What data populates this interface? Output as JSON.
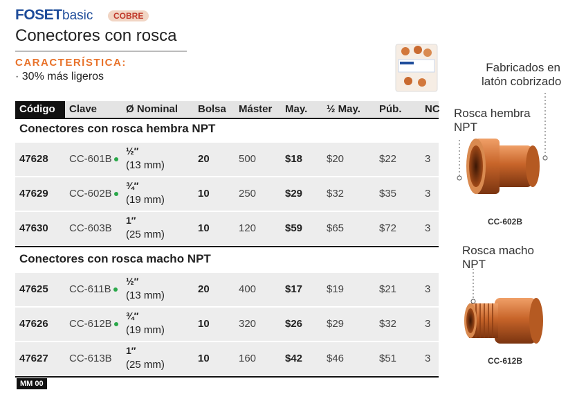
{
  "header": {
    "brand": "FOSET",
    "line": "basic",
    "badge": "COBRE",
    "title": "Conectores con rosca"
  },
  "feature": {
    "heading": "CARACTERÍSTICA:",
    "items": [
      "· 30% más ligeros"
    ]
  },
  "table": {
    "columns": [
      "Código",
      "Clave",
      "Ø Nominal",
      "Bolsa",
      "Máster",
      "May.",
      "½ May.",
      "Púb.",
      "NC"
    ],
    "sections": [
      {
        "title": "Conectores con rosca hembra NPT",
        "rows": [
          {
            "code": "47628",
            "clave": "CC-601B",
            "dot": true,
            "size": "½″",
            "mm": "(13 mm)",
            "bolsa": "20",
            "master": "500",
            "may": "$18",
            "half": "$20",
            "pub": "$22",
            "nc": "3"
          },
          {
            "code": "47629",
            "clave": "CC-602B",
            "dot": true,
            "size": "¾″",
            "mm": "(19 mm)",
            "bolsa": "10",
            "master": "250",
            "may": "$29",
            "half": "$32",
            "pub": "$35",
            "nc": "3"
          },
          {
            "code": "47630",
            "clave": "CC-603B",
            "dot": false,
            "size": "1″",
            "mm": "(25 mm)",
            "bolsa": "10",
            "master": "120",
            "may": "$59",
            "half": "$65",
            "pub": "$72",
            "nc": "3"
          }
        ]
      },
      {
        "title": "Conectores con rosca macho NPT",
        "rows": [
          {
            "code": "47625",
            "clave": "CC-611B",
            "dot": true,
            "size": "½″",
            "mm": "(13 mm)",
            "bolsa": "20",
            "master": "400",
            "may": "$17",
            "half": "$19",
            "pub": "$21",
            "nc": "3"
          },
          {
            "code": "47626",
            "clave": "CC-612B",
            "dot": true,
            "size": "¾″",
            "mm": "(19 mm)",
            "bolsa": "10",
            "master": "320",
            "may": "$26",
            "half": "$29",
            "pub": "$32",
            "nc": "3"
          },
          {
            "code": "47627",
            "clave": "CC-613B",
            "dot": false,
            "size": "1″",
            "mm": "(25 mm)",
            "bolsa": "10",
            "master": "160",
            "may": "$42",
            "half": "$46",
            "pub": "$51",
            "nc": "3"
          }
        ]
      }
    ]
  },
  "callouts": {
    "material": [
      "Fabricados en",
      "latón cobrizado"
    ],
    "female": [
      "Rosca hembra",
      "NPT"
    ],
    "female_code": "CC-602B",
    "male": [
      "Rosca macho",
      "NPT"
    ],
    "male_code": "CC-612B"
  },
  "footer": "MM 00"
}
